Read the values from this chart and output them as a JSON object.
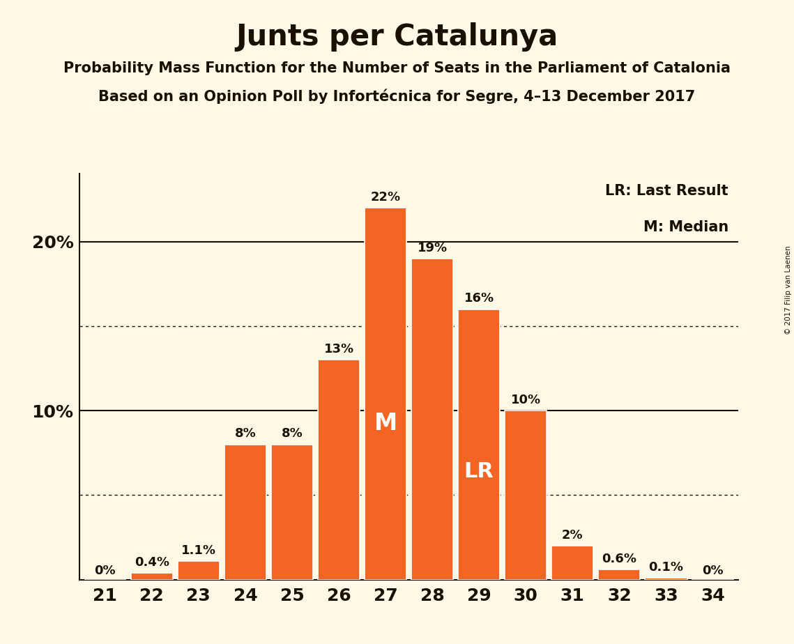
{
  "title": "Junts per Catalunya",
  "subtitle1": "Probability Mass Function for the Number of Seats in the Parliament of Catalonia",
  "subtitle2": "Based on an Opinion Poll by Infortécnica for Segre, 4–13 December 2017",
  "copyright": "© 2017 Filip van Laenen",
  "seats": [
    21,
    22,
    23,
    24,
    25,
    26,
    27,
    28,
    29,
    30,
    31,
    32,
    33,
    34
  ],
  "values": [
    0.0,
    0.4,
    1.1,
    8.0,
    8.0,
    13.0,
    22.0,
    19.0,
    16.0,
    10.0,
    2.0,
    0.6,
    0.1,
    0.0
  ],
  "labels": [
    "0%",
    "0.4%",
    "1.1%",
    "8%",
    "8%",
    "13%",
    "22%",
    "19%",
    "16%",
    "10%",
    "2%",
    "0.6%",
    "0.1%",
    "0%"
  ],
  "bar_color": "#F26522",
  "background_color": "#FFF9E6",
  "text_color": "#1a1000",
  "median_seat": 27,
  "last_result_seat": 29,
  "legend_lr": "LR: Last Result",
  "legend_m": "M: Median",
  "ylim": [
    0,
    24
  ],
  "solid_lines": [
    10,
    20
  ],
  "dotted_lines": [
    5,
    15
  ],
  "title_fontsize": 30,
  "subtitle_fontsize": 15,
  "label_fontsize": 13,
  "tick_fontsize": 18,
  "bar_width": 0.9
}
